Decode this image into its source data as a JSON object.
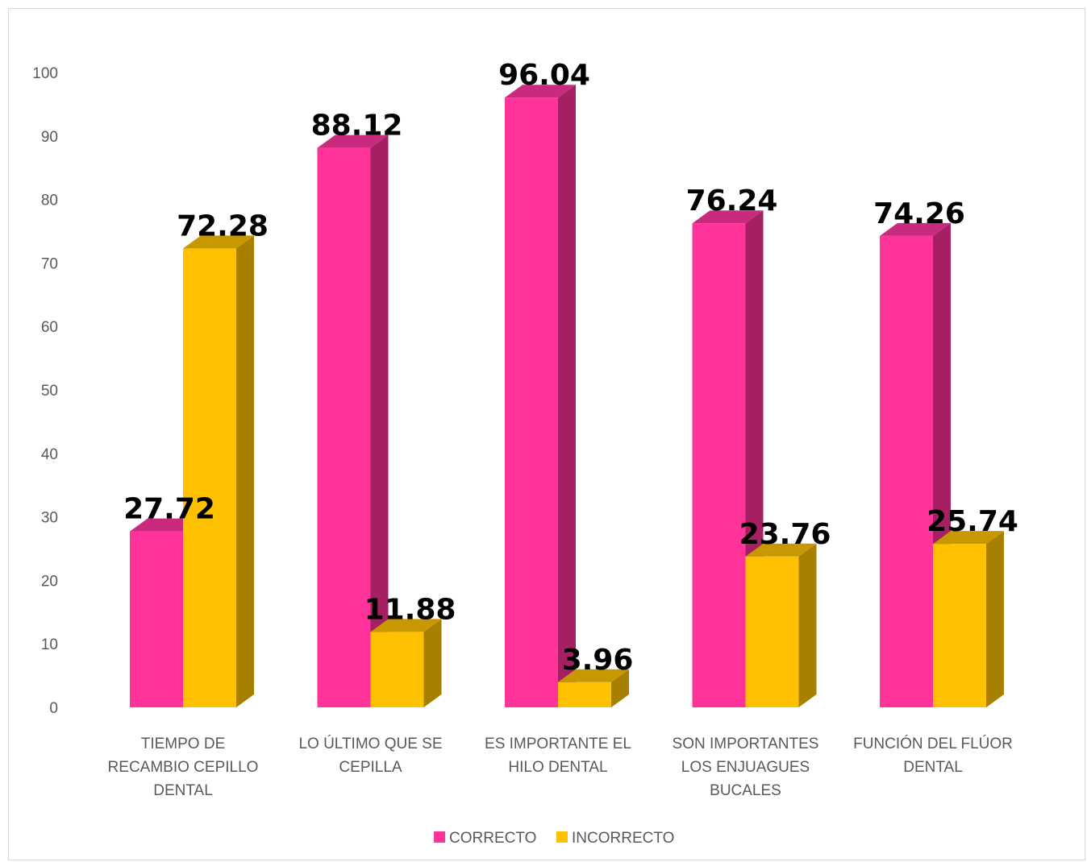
{
  "chart_data": {
    "type": "bar",
    "categories": [
      [
        "TIEMPO DE",
        "RECAMBIO CEPILLO",
        "DENTAL"
      ],
      [
        "LO ÚLTIMO QUE SE",
        "CEPILLA"
      ],
      [
        "ES IMPORTANTE EL",
        "HILO DENTAL"
      ],
      [
        "SON IMPORTANTES",
        "LOS ENJUAGUES",
        "BUCALES"
      ],
      [
        "FUNCIÓN DEL FLÚOR",
        "DENTAL"
      ]
    ],
    "series": [
      {
        "name": "CORRECTO",
        "values": [
          27.72,
          88.12,
          96.04,
          76.24,
          74.26
        ],
        "labels": [
          "27.72",
          "88.12",
          "96.04",
          "76.24",
          "74.26"
        ],
        "color": "#FF3399",
        "side_color": "#A51F63",
        "top_color": "#C92A7E"
      },
      {
        "name": "INCORRECTO",
        "values": [
          72.28,
          11.88,
          3.96,
          23.76,
          25.74
        ],
        "labels": [
          "72.28",
          "11.88",
          "3.96",
          "23.76",
          "25.74"
        ],
        "color": "#FFC000",
        "side_color": "#A88000",
        "top_color": "#C89800"
      }
    ],
    "yticks": [
      "0",
      "10",
      "20",
      "30",
      "40",
      "50",
      "60",
      "70",
      "80",
      "90",
      "100"
    ],
    "ylim": [
      0,
      100
    ],
    "grid": false,
    "legend": "bottom",
    "title": "",
    "xlabel": "",
    "ylabel": ""
  }
}
